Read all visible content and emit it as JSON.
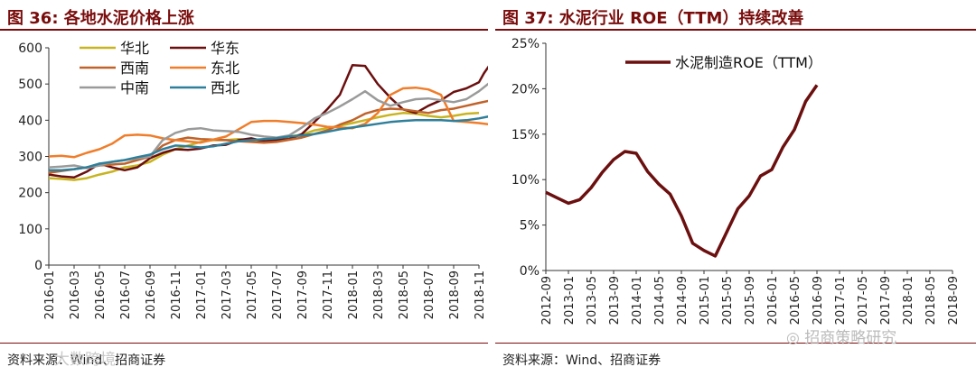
{
  "chart_data": [
    {
      "type": "line",
      "title_prefix": "图 36:",
      "title": "各地水泥价格上涨",
      "source": "资料来源：Wind、招商证券",
      "ylim": [
        0,
        600
      ],
      "yticks": [
        "0",
        "100",
        "200",
        "300",
        "400",
        "500",
        "600"
      ],
      "x_labels": [
        "2016-01",
        "2016-03",
        "2016-05",
        "2016-07",
        "2016-09",
        "2016-11",
        "2017-01",
        "2017-03",
        "2017-05",
        "2017-07",
        "2017-09",
        "2017-11",
        "2018-01",
        "2018-03",
        "2018-05",
        "2018-07",
        "2018-09",
        "2018-11"
      ],
      "series": [
        {
          "name": "华北",
          "color": "#c8b420",
          "points": [
            [
              0,
              240
            ],
            [
              0.5,
              238
            ],
            [
              1,
              235
            ],
            [
              1.5,
              240
            ],
            [
              2,
              250
            ],
            [
              2.5,
              258
            ],
            [
              3,
              270
            ],
            [
              3.5,
              275
            ],
            [
              4,
              285
            ],
            [
              4.5,
              305
            ],
            [
              5,
              320
            ],
            [
              5.5,
              330
            ],
            [
              6,
              340
            ],
            [
              6.5,
              345
            ],
            [
              7,
              345
            ],
            [
              7.5,
              348
            ],
            [
              8,
              345
            ],
            [
              8.5,
              340
            ],
            [
              9,
              345
            ],
            [
              9.5,
              355
            ],
            [
              10,
              360
            ],
            [
              10.5,
              372
            ],
            [
              11,
              378
            ],
            [
              11.5,
              385
            ],
            [
              12,
              392
            ],
            [
              12.5,
              400
            ],
            [
              13,
              408
            ],
            [
              13.5,
              415
            ],
            [
              14,
              420
            ],
            [
              14.5,
              418
            ],
            [
              15,
              412
            ],
            [
              15.5,
              408
            ],
            [
              16,
              412
            ],
            [
              16.5,
              418
            ],
            [
              17,
              420
            ]
          ]
        },
        {
          "name": "华东",
          "color": "#6b0f0f",
          "points": [
            [
              0,
              250
            ],
            [
              0.5,
              245
            ],
            [
              1,
              242
            ],
            [
              1.5,
              258
            ],
            [
              2,
              280
            ],
            [
              2.5,
              270
            ],
            [
              3,
              262
            ],
            [
              3.5,
              270
            ],
            [
              4,
              295
            ],
            [
              4.5,
              310
            ],
            [
              5,
              320
            ],
            [
              5.5,
              318
            ],
            [
              6,
              322
            ],
            [
              6.5,
              330
            ],
            [
              7,
              332
            ],
            [
              7.5,
              345
            ],
            [
              8,
              350
            ],
            [
              8.5,
              342
            ],
            [
              9,
              345
            ],
            [
              9.5,
              348
            ],
            [
              10,
              362
            ],
            [
              10.5,
              395
            ],
            [
              11,
              430
            ],
            [
              11.5,
              470
            ],
            [
              12,
              552
            ],
            [
              12.5,
              550
            ],
            [
              13,
              500
            ],
            [
              13.5,
              462
            ],
            [
              14,
              430
            ],
            [
              14.5,
              420
            ],
            [
              15,
              440
            ],
            [
              15.5,
              455
            ],
            [
              16,
              478
            ],
            [
              16.5,
              488
            ],
            [
              17,
              505
            ],
            [
              17.2,
              530
            ],
            [
              17.5,
              560
            ]
          ]
        },
        {
          "name": "西南",
          "color": "#c0622a",
          "points": [
            [
              0,
              255
            ],
            [
              1,
              265
            ],
            [
              2,
              275
            ],
            [
              3,
              280
            ],
            [
              4,
              300
            ],
            [
              4.5,
              330
            ],
            [
              5,
              345
            ],
            [
              5.5,
              352
            ],
            [
              6,
              348
            ],
            [
              7,
              345
            ],
            [
              7.5,
              342
            ],
            [
              8,
              340
            ],
            [
              8.5,
              338
            ],
            [
              9,
              340
            ],
            [
              10,
              352
            ],
            [
              10.5,
              362
            ],
            [
              11,
              372
            ],
            [
              11.5,
              388
            ],
            [
              12,
              400
            ],
            [
              12.5,
              418
            ],
            [
              13,
              428
            ],
            [
              13.5,
              432
            ],
            [
              14,
              430
            ],
            [
              14.5,
              425
            ],
            [
              15,
              420
            ],
            [
              15.5,
              428
            ],
            [
              16,
              432
            ],
            [
              16.5,
              440
            ],
            [
              17,
              448
            ],
            [
              17.5,
              455
            ]
          ]
        },
        {
          "name": "东北",
          "color": "#f07d2a",
          "points": [
            [
              0,
              300
            ],
            [
              0.5,
              302
            ],
            [
              1,
              298
            ],
            [
              1.5,
              310
            ],
            [
              2,
              320
            ],
            [
              2.5,
              335
            ],
            [
              3,
              358
            ],
            [
              3.5,
              360
            ],
            [
              4,
              358
            ],
            [
              4.5,
              350
            ],
            [
              5,
              345
            ],
            [
              6,
              338
            ],
            [
              7,
              355
            ],
            [
              7.5,
              375
            ],
            [
              8,
              395
            ],
            [
              8.5,
              398
            ],
            [
              9,
              398
            ],
            [
              9.5,
              395
            ],
            [
              10,
              392
            ],
            [
              10.5,
              388
            ],
            [
              11,
              382
            ],
            [
              11.5,
              380
            ],
            [
              12,
              378
            ],
            [
              12.5,
              390
            ],
            [
              13,
              420
            ],
            [
              13.5,
              470
            ],
            [
              14,
              488
            ],
            [
              14.5,
              490
            ],
            [
              15,
              485
            ],
            [
              15.5,
              470
            ],
            [
              16,
              398
            ],
            [
              16.5,
              395
            ],
            [
              17,
              392
            ],
            [
              17.5,
              388
            ]
          ]
        },
        {
          "name": "中南",
          "color": "#9a9a9a",
          "points": [
            [
              0,
              270
            ],
            [
              0.5,
              272
            ],
            [
              1,
              275
            ],
            [
              1.5,
              268
            ],
            [
              2,
              275
            ],
            [
              2.5,
              285
            ],
            [
              3,
              290
            ],
            [
              3.5,
              295
            ],
            [
              4,
              300
            ],
            [
              4.5,
              345
            ],
            [
              5,
              365
            ],
            [
              5.5,
              375
            ],
            [
              6,
              378
            ],
            [
              6.5,
              372
            ],
            [
              7,
              370
            ],
            [
              7.5,
              368
            ],
            [
              8,
              360
            ],
            [
              8.5,
              355
            ],
            [
              9,
              352
            ],
            [
              9.5,
              358
            ],
            [
              10,
              380
            ],
            [
              10.5,
              405
            ],
            [
              11,
              420
            ],
            [
              11.5,
              438
            ],
            [
              12,
              458
            ],
            [
              12.5,
              480
            ],
            [
              13,
              455
            ],
            [
              13.5,
              440
            ],
            [
              14,
              450
            ],
            [
              14.5,
              458
            ],
            [
              15,
              460
            ],
            [
              15.5,
              455
            ],
            [
              16,
              450
            ],
            [
              16.5,
              458
            ],
            [
              17,
              480
            ],
            [
              17.5,
              508
            ]
          ]
        },
        {
          "name": "西北",
          "color": "#2f7f9a",
          "points": [
            [
              0,
              262
            ],
            [
              0.5,
              262
            ],
            [
              1,
              265
            ],
            [
              1.5,
              270
            ],
            [
              2,
              280
            ],
            [
              2.5,
              285
            ],
            [
              3,
              290
            ],
            [
              3.5,
              298
            ],
            [
              4,
              305
            ],
            [
              4.5,
              320
            ],
            [
              5,
              330
            ],
            [
              5.5,
              328
            ],
            [
              6,
              325
            ],
            [
              6.5,
              328
            ],
            [
              7,
              335
            ],
            [
              7.5,
              342
            ],
            [
              8,
              345
            ],
            [
              8.5,
              348
            ],
            [
              9,
              350
            ],
            [
              9.5,
              355
            ],
            [
              10,
              358
            ],
            [
              10.5,
              362
            ],
            [
              11,
              368
            ],
            [
              11.5,
              375
            ],
            [
              12,
              380
            ],
            [
              12.5,
              385
            ],
            [
              13,
              390
            ],
            [
              13.5,
              395
            ],
            [
              14,
              398
            ],
            [
              14.5,
              400
            ],
            [
              15,
              400
            ],
            [
              15.5,
              400
            ],
            [
              16,
              398
            ],
            [
              16.5,
              400
            ],
            [
              17,
              405
            ],
            [
              17.5,
              412
            ]
          ]
        }
      ]
    },
    {
      "type": "line",
      "title_prefix": "图 37:",
      "title": "水泥行业 ROE（TTM）持续改善",
      "source": "资料来源：Wind、招商证券",
      "ylim": [
        0,
        25
      ],
      "yticks": [
        "0%",
        "5%",
        "10%",
        "15%",
        "20%",
        "25%"
      ],
      "categories": [
        "2012-09",
        "2013-01",
        "2013-05",
        "2013-09",
        "2014-01",
        "2014-05",
        "2014-09",
        "2015-01",
        "2015-05",
        "2015-09",
        "2016-01",
        "2016-05",
        "2016-09",
        "2017-01",
        "2017-05",
        "2017-09",
        "2018-01",
        "2018-05",
        "2018-09"
      ],
      "series": [
        {
          "name": "水泥制造ROE（TTM）",
          "color": "#6b0f0f",
          "points": [
            [
              0,
              8.6
            ],
            [
              0.5,
              8.0
            ],
            [
              1,
              7.4
            ],
            [
              1.5,
              7.8
            ],
            [
              2,
              9.1
            ],
            [
              2.5,
              10.8
            ],
            [
              3,
              12.2
            ],
            [
              3.5,
              13.1
            ],
            [
              4,
              12.9
            ],
            [
              4.5,
              10.9
            ],
            [
              5,
              9.5
            ],
            [
              5.5,
              8.4
            ],
            [
              6,
              6.0
            ],
            [
              6.5,
              3.0
            ],
            [
              7,
              2.2
            ],
            [
              7.5,
              1.6
            ],
            [
              8,
              4.2
            ],
            [
              8.5,
              6.8
            ],
            [
              9,
              8.2
            ],
            [
              9.5,
              10.4
            ],
            [
              10,
              11.1
            ],
            [
              10.5,
              13.6
            ],
            [
              11,
              15.5
            ],
            [
              11.5,
              18.6
            ],
            [
              12,
              20.4
            ]
          ]
        }
      ]
    }
  ],
  "watermarks": {
    "left": "大数跨境",
    "right": "招商策略研究"
  }
}
